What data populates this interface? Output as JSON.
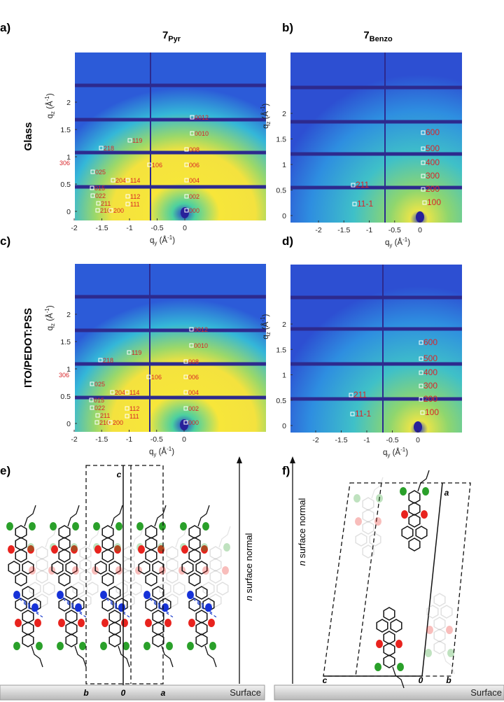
{
  "panels": [
    {
      "label": "a)",
      "title": "7",
      "title_sub": "Pyr",
      "row_label": "Glass",
      "x_axis": [
        "q",
        "y",
        " (Å",
        "-1",
        ")"
      ],
      "y_axis": [
        "q",
        "z",
        " (Å",
        "-1",
        ")"
      ],
      "xticks": [
        "-2",
        "-1.5",
        "-1",
        "-0.5",
        "0"
      ],
      "yticks": [
        "0",
        "0.5",
        "1",
        "1.5",
        "2"
      ],
      "peaks": [
        "0012",
        "0010",
        "119",
        "218",
        "008",
        "306",
        "106",
        "006",
        "025",
        "204",
        "114",
        "004",
        "015",
        "022",
        "112",
        "002",
        "211",
        "111",
        "210",
        "200",
        "000"
      ]
    },
    {
      "label": "b)",
      "title": "7",
      "title_sub": "Benzo",
      "x_axis": [
        "q",
        "y",
        " (Å",
        "-1",
        ")"
      ],
      "y_axis": [
        "q",
        "z",
        " (Å",
        "-1",
        ")"
      ],
      "xticks": [
        "-2",
        "-1.5",
        "-1",
        "-0.5",
        "0"
      ],
      "yticks": [
        "0",
        "0.5",
        "1",
        "1.5",
        "2"
      ],
      "peaks": [
        "600",
        "500",
        "400",
        "300",
        "200",
        "100",
        "211",
        "11-1"
      ]
    },
    {
      "label": "c)",
      "row_label": "ITO/PEDOT:PSS",
      "x_axis": [
        "q",
        "y",
        " (Å",
        "-1",
        ")"
      ],
      "y_axis": [
        "q",
        "z",
        " (Å",
        "-1",
        ")"
      ],
      "xticks": [
        "-2",
        "-1.5",
        "-1",
        "-0.5",
        "0"
      ],
      "yticks": [
        "0",
        "0.5",
        "1",
        "1.5",
        "2"
      ],
      "peaks": [
        "0012",
        "0010",
        "119",
        "218",
        "008",
        "306",
        "106",
        "006",
        "025",
        "204",
        "114",
        "004",
        "015",
        "022",
        "112",
        "002",
        "211",
        "111",
        "210",
        "200",
        "000"
      ]
    },
    {
      "label": "d)",
      "x_axis": [
        "q",
        "y",
        " (Å",
        "-1",
        ")"
      ],
      "y_axis": [
        "q",
        "z",
        " (Å",
        "-1",
        ")"
      ],
      "xticks": [
        "-2",
        "-1.5",
        "-1",
        "-0.5",
        "0"
      ],
      "yticks": [
        "0",
        "0.5",
        "1",
        "1.5",
        "2"
      ],
      "peaks": [
        "600",
        "500",
        "400",
        "300",
        "200",
        "100",
        "211",
        "11-1"
      ]
    }
  ],
  "structures": [
    {
      "label": "e)",
      "axes": [
        "c",
        "b",
        "0",
        "a"
      ],
      "normal": [
        "n",
        " surface normal"
      ],
      "surface": "Surface"
    },
    {
      "label": "f)",
      "axes": [
        "a",
        "c",
        "0",
        "b"
      ],
      "normal": [
        "n",
        " surface normal"
      ],
      "surface": "Surface"
    }
  ]
}
